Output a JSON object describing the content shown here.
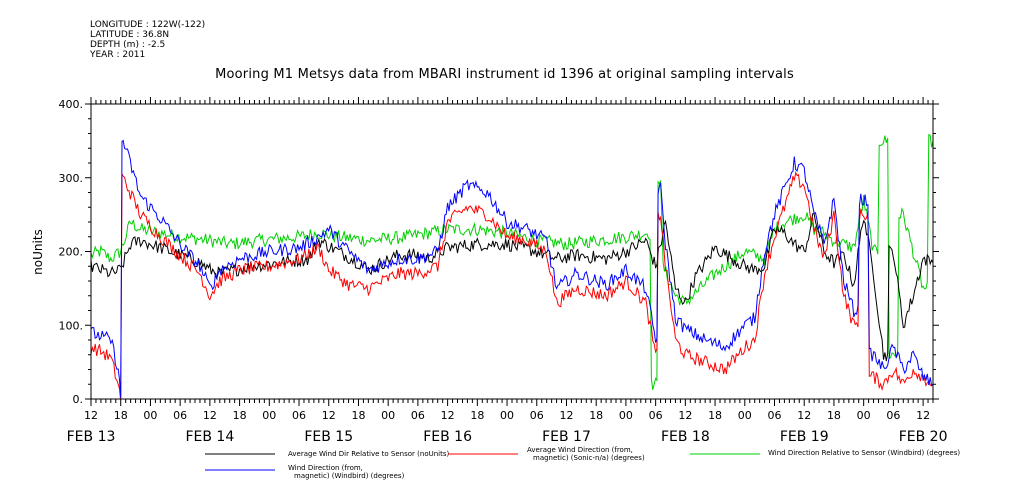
{
  "meta": {
    "longitude": "LONGITUDE : 122W(-122)",
    "latitude": "LATITUDE : 36.8N",
    "depth": "DEPTH (m) : -2.5",
    "year": "YEAR : 2011"
  },
  "chart_data": {
    "type": "line",
    "title": "Mooring M1 Metsys data from MBARI instrument id 1396 at original sampling intervals",
    "ylabel": "noUnits",
    "ylim": [
      0,
      400
    ],
    "yticks": [
      "0.",
      "100.",
      "200.",
      "300.",
      "400."
    ],
    "yticks_values": [
      0,
      100,
      200,
      300,
      400
    ],
    "xlim": [
      "2011-02-13T12:00",
      "2011-02-20T14:00"
    ],
    "hour_tick_labels": [
      "12",
      "18",
      "00",
      "06",
      "12",
      "18",
      "00",
      "06",
      "12",
      "18",
      "00",
      "06",
      "12",
      "18",
      "00",
      "06",
      "12",
      "18",
      "00",
      "06",
      "12",
      "18",
      "00",
      "06",
      "12",
      "18",
      "00",
      "06",
      "12"
    ],
    "day_labels": [
      {
        "text": "FEB 13",
        "at": "2011-02-13T12:00"
      },
      {
        "text": "FEB 14",
        "at": "2011-02-14T12:00"
      },
      {
        "text": "FEB 15",
        "at": "2011-02-15T12:00"
      },
      {
        "text": "FEB 16",
        "at": "2011-02-16T12:00"
      },
      {
        "text": "FEB 17",
        "at": "2011-02-17T12:00"
      },
      {
        "text": "FEB 18",
        "at": "2011-02-18T12:00"
      },
      {
        "text": "FEB 19",
        "at": "2011-02-19T12:00"
      },
      {
        "text": "FEB 20",
        "at": "2011-02-20T12:00"
      }
    ],
    "grid": false,
    "legend_position": "bottom",
    "series": [
      {
        "name": "Average Wind Dir Relative to Sensor (noUnits)",
        "color": "#000000",
        "t": [
          "2011-02-13T12:00",
          "2011-02-13T14:00",
          "2011-02-13T16:00",
          "2011-02-13T18:00",
          "2011-02-13T20:00",
          "2011-02-13T22:00",
          "2011-02-14T02:00",
          "2011-02-14T06:00",
          "2011-02-14T10:00",
          "2011-02-14T12:00",
          "2011-02-14T14:00",
          "2011-02-14T20:00",
          "2011-02-15T02:00",
          "2011-02-15T08:00",
          "2011-02-15T10:00",
          "2011-02-15T14:00",
          "2011-02-15T18:00",
          "2011-02-15T20:00",
          "2011-02-16T02:00",
          "2011-02-16T06:00",
          "2011-02-16T08:00",
          "2011-02-16T12:00",
          "2011-02-16T18:00",
          "2011-02-17T00:00",
          "2011-02-17T06:00",
          "2011-02-17T10:00",
          "2011-02-17T14:00",
          "2011-02-17T20:00",
          "2011-02-18T00:00",
          "2011-02-18T04:00",
          "2011-02-18T06:00",
          "2011-02-18T08:00",
          "2011-02-18T10:00",
          "2011-02-18T12:00",
          "2011-02-18T14:00",
          "2011-02-18T16:00",
          "2011-02-18T18:00",
          "2011-02-19T00:00",
          "2011-02-19T02:00",
          "2011-02-19T04:00",
          "2011-02-19T06:00",
          "2011-02-19T08:00",
          "2011-02-19T10:00",
          "2011-02-19T12:00",
          "2011-02-19T14:00",
          "2011-02-19T16:00",
          "2011-02-19T18:00",
          "2011-02-19T20:00",
          "2011-02-19T22:00",
          "2011-02-20T00:00",
          "2011-02-20T02:00",
          "2011-02-20T04:00",
          "2011-02-20T06:00",
          "2011-02-20T08:00",
          "2011-02-20T10:00",
          "2011-02-20T12:00",
          "2011-02-20T14:00"
        ],
        "values": [
          180,
          175,
          170,
          175,
          210,
          215,
          205,
          195,
          185,
          175,
          170,
          180,
          185,
          190,
          215,
          200,
          185,
          175,
          195,
          195,
          190,
          205,
          210,
          210,
          200,
          190,
          195,
          190,
          200,
          215,
          180,
          240,
          150,
          130,
          165,
          185,
          205,
          180,
          175,
          180,
          230,
          225,
          210,
          200,
          250,
          200,
          185,
          195,
          155,
          250,
          170,
          60,
          200,
          100,
          140,
          190,
          185
        ]
      },
      {
        "name": "Average Wind Direction (from,\nmagnetic) (Sonic-n/a) (degrees)",
        "color": "#ff0000",
        "t": [
          "2011-02-13T12:00",
          "2011-02-13T14:00",
          "2011-02-13T16:00",
          "2011-02-13T17:30",
          "2011-02-13T18:00",
          "2011-02-13T18:30",
          "2011-02-13T22:00",
          "2011-02-14T02:00",
          "2011-02-14T06:00",
          "2011-02-14T10:00",
          "2011-02-14T12:00",
          "2011-02-14T14:00",
          "2011-02-14T18:00",
          "2011-02-15T00:00",
          "2011-02-15T06:00",
          "2011-02-15T10:00",
          "2011-02-15T12:00",
          "2011-02-15T16:00",
          "2011-02-15T20:00",
          "2011-02-16T02:00",
          "2011-02-16T06:00",
          "2011-02-16T10:00",
          "2011-02-16T12:00",
          "2011-02-16T16:00",
          "2011-02-16T20:00",
          "2011-02-17T00:00",
          "2011-02-17T04:00",
          "2011-02-17T08:00",
          "2011-02-17T10:00",
          "2011-02-17T14:00",
          "2011-02-17T20:00",
          "2011-02-18T00:00",
          "2011-02-18T04:00",
          "2011-02-18T06:00",
          "2011-02-18T07:00",
          "2011-02-18T08:00",
          "2011-02-18T10:00",
          "2011-02-18T12:00",
          "2011-02-18T16:00",
          "2011-02-18T20:00",
          "2011-02-19T00:00",
          "2011-02-19T02:00",
          "2011-02-19T04:00",
          "2011-02-19T06:00",
          "2011-02-19T10:00",
          "2011-02-19T12:00",
          "2011-02-19T14:00",
          "2011-02-19T16:00",
          "2011-02-19T18:00",
          "2011-02-19T20:00",
          "2011-02-19T22:00",
          "2011-02-20T00:00",
          "2011-02-20T02:00",
          "2011-02-20T04:00",
          "2011-02-20T06:00",
          "2011-02-20T08:00",
          "2011-02-20T10:00",
          "2011-02-20T12:00",
          "2011-02-20T14:00"
        ],
        "values": [
          70,
          65,
          55,
          20,
          0,
          300,
          250,
          220,
          195,
          170,
          140,
          160,
          175,
          180,
          190,
          205,
          175,
          155,
          150,
          170,
          170,
          180,
          240,
          260,
          250,
          220,
          215,
          200,
          130,
          150,
          140,
          160,
          130,
          60,
          250,
          180,
          80,
          60,
          50,
          40,
          70,
          80,
          170,
          220,
          300,
          290,
          230,
          190,
          250,
          140,
          100,
          250,
          30,
          20,
          40,
          20,
          40,
          30,
          20
        ]
      },
      {
        "name": "Wind Direction Relative to Sensor (Windbird) (degrees)",
        "color": "#00d000",
        "t": [
          "2011-02-13T12:00",
          "2011-02-13T14:00",
          "2011-02-13T16:00",
          "2011-02-13T18:00",
          "2011-02-13T20:00",
          "2011-02-13T22:00",
          "2011-02-14T02:00",
          "2011-02-14T06:00",
          "2011-02-14T12:00",
          "2011-02-14T16:00",
          "2011-02-14T22:00",
          "2011-02-15T06:00",
          "2011-02-15T10:00",
          "2011-02-15T14:00",
          "2011-02-15T20:00",
          "2011-02-16T04:00",
          "2011-02-16T08:00",
          "2011-02-16T12:00",
          "2011-02-16T18:00",
          "2011-02-17T00:00",
          "2011-02-17T06:00",
          "2011-02-17T12:00",
          "2011-02-17T18:00",
          "2011-02-18T00:00",
          "2011-02-18T04:00",
          "2011-02-18T06:00",
          "2011-02-18T07:00",
          "2011-02-18T07:30",
          "2011-02-18T10:00",
          "2011-02-18T12:00",
          "2011-02-18T18:00",
          "2011-02-19T00:00",
          "2011-02-19T04:00",
          "2011-02-19T06:00",
          "2011-02-19T08:00",
          "2011-02-19T12:00",
          "2011-02-19T14:00",
          "2011-02-19T16:00",
          "2011-02-19T18:00",
          "2011-02-19T20:00",
          "2011-02-19T22:00",
          "2011-02-20T00:00",
          "2011-02-20T02:00",
          "2011-02-20T04:00",
          "2011-02-20T06:00",
          "2011-02-20T08:00",
          "2011-02-20T10:00",
          "2011-02-20T12:00",
          "2011-02-20T14:00"
        ],
        "values": [
          195,
          200,
          190,
          200,
          240,
          230,
          225,
          220,
          215,
          210,
          215,
          220,
          225,
          220,
          215,
          220,
          225,
          230,
          230,
          225,
          215,
          210,
          215,
          220,
          225,
          20,
          300,
          180,
          140,
          130,
          170,
          200,
          190,
          230,
          240,
          250,
          230,
          225,
          215,
          210,
          205,
          270,
          200,
          350,
          60,
          250,
          200,
          150,
          350
        ]
      },
      {
        "name": "Wind Direction (from,\nmagnetic) (Windbird) (degrees)",
        "color": "#0000ff",
        "t": [
          "2011-02-13T12:00",
          "2011-02-13T14:00",
          "2011-02-13T16:00",
          "2011-02-13T17:30",
          "2011-02-13T18:00",
          "2011-02-13T18:30",
          "2011-02-13T22:00",
          "2011-02-14T02:00",
          "2011-02-14T06:00",
          "2011-02-14T10:00",
          "2011-02-14T12:00",
          "2011-02-14T14:00",
          "2011-02-14T18:00",
          "2011-02-15T00:00",
          "2011-02-15T06:00",
          "2011-02-15T10:00",
          "2011-02-15T12:00",
          "2011-02-15T16:00",
          "2011-02-15T20:00",
          "2011-02-16T02:00",
          "2011-02-16T06:00",
          "2011-02-16T10:00",
          "2011-02-16T12:00",
          "2011-02-16T16:00",
          "2011-02-16T20:00",
          "2011-02-17T00:00",
          "2011-02-17T04:00",
          "2011-02-17T08:00",
          "2011-02-17T10:00",
          "2011-02-17T14:00",
          "2011-02-17T20:00",
          "2011-02-18T00:00",
          "2011-02-18T04:00",
          "2011-02-18T06:00",
          "2011-02-18T07:00",
          "2011-02-18T08:00",
          "2011-02-18T10:00",
          "2011-02-18T12:00",
          "2011-02-18T16:00",
          "2011-02-18T20:00",
          "2011-02-19T00:00",
          "2011-02-19T02:00",
          "2011-02-19T04:00",
          "2011-02-19T06:00",
          "2011-02-19T10:00",
          "2011-02-19T12:00",
          "2011-02-19T14:00",
          "2011-02-19T16:00",
          "2011-02-19T18:00",
          "2011-02-19T20:00",
          "2011-02-19T22:00",
          "2011-02-20T00:00",
          "2011-02-20T02:00",
          "2011-02-20T04:00",
          "2011-02-20T06:00",
          "2011-02-20T08:00",
          "2011-02-20T10:00",
          "2011-02-20T12:00",
          "2011-02-20T14:00"
        ],
        "values": [
          90,
          85,
          80,
          40,
          0,
          350,
          275,
          245,
          210,
          180,
          150,
          175,
          190,
          200,
          205,
          220,
          230,
          200,
          175,
          190,
          190,
          200,
          260,
          290,
          280,
          240,
          230,
          215,
          150,
          170,
          155,
          175,
          150,
          80,
          285,
          210,
          110,
          95,
          80,
          70,
          100,
          110,
          200,
          250,
          320,
          310,
          250,
          210,
          270,
          160,
          120,
          270,
          60,
          40,
          70,
          40,
          60,
          30,
          20
        ]
      }
    ]
  }
}
